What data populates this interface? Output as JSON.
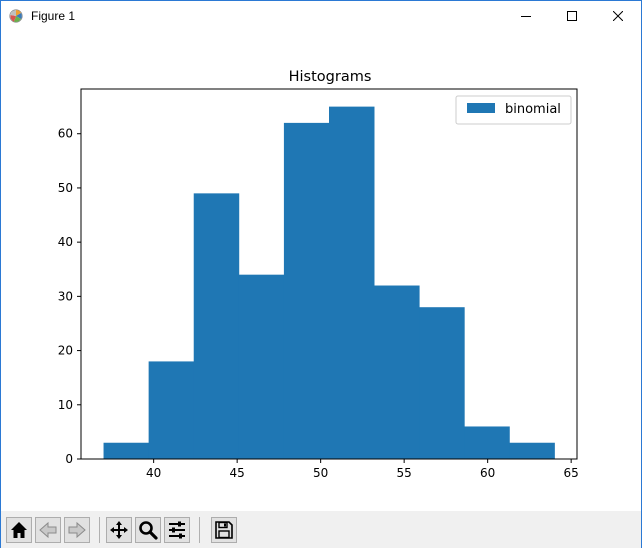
{
  "window": {
    "title": "Figure 1",
    "controls": [
      "minimize",
      "maximize",
      "close"
    ]
  },
  "toolbar": {
    "buttons": [
      {
        "icon": "home-icon",
        "tooltip": "Home"
      },
      {
        "icon": "back-icon",
        "tooltip": "Back"
      },
      {
        "icon": "forward-icon",
        "tooltip": "Forward"
      },
      {
        "icon": "pan-icon",
        "tooltip": "Pan"
      },
      {
        "icon": "zoom-icon",
        "tooltip": "Zoom"
      },
      {
        "icon": "configure-subplots-icon",
        "tooltip": "Subplots"
      },
      {
        "icon": "save-icon",
        "tooltip": "Save"
      }
    ]
  },
  "chart_data": {
    "type": "bar",
    "title": "Histograms",
    "xlabel": "",
    "ylabel": "",
    "bin_edges": [
      37.0,
      39.7,
      42.4,
      45.1,
      47.8,
      50.5,
      53.2,
      55.9,
      58.6,
      61.3,
      64.0
    ],
    "series": [
      {
        "name": "binomial",
        "values": [
          3,
          18,
          49,
          34,
          62,
          65,
          32,
          28,
          6,
          3
        ],
        "color": "#1f77b4"
      }
    ],
    "xlim": [
      35.65,
      65.35
    ],
    "ylim": [
      0,
      68.25
    ],
    "xticks": [
      "40",
      "45",
      "50",
      "55",
      "60",
      "65"
    ],
    "xtick_values": [
      40,
      45,
      50,
      55,
      60,
      65
    ],
    "yticks": [
      "0",
      "10",
      "20",
      "30",
      "40",
      "50",
      "60"
    ],
    "ytick_values": [
      0,
      10,
      20,
      30,
      40,
      50,
      60
    ],
    "grid": false,
    "legend": "top-right"
  }
}
